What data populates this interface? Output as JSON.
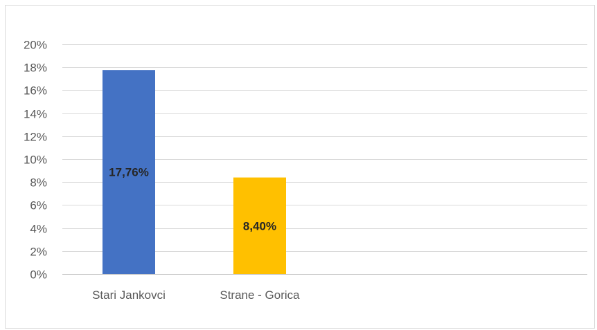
{
  "chart_data": {
    "type": "bar",
    "categories": [
      "Stari Jankovci",
      "Strane - Gorica"
    ],
    "values": [
      17.76,
      8.4
    ],
    "data_labels": [
      "17,76%",
      "8,40%"
    ],
    "colors": [
      "#4472c4",
      "#ffc000"
    ],
    "ylim": [
      0,
      20
    ],
    "yticks": [
      0,
      2,
      4,
      6,
      8,
      10,
      12,
      14,
      16,
      18,
      20
    ],
    "ytick_labels": [
      "0%",
      "2%",
      "4%",
      "6%",
      "8%",
      "10%",
      "12%",
      "14%",
      "16%",
      "18%",
      "20%"
    ],
    "title": "",
    "xlabel": "",
    "ylabel": "",
    "grid": true,
    "legend": "none"
  }
}
